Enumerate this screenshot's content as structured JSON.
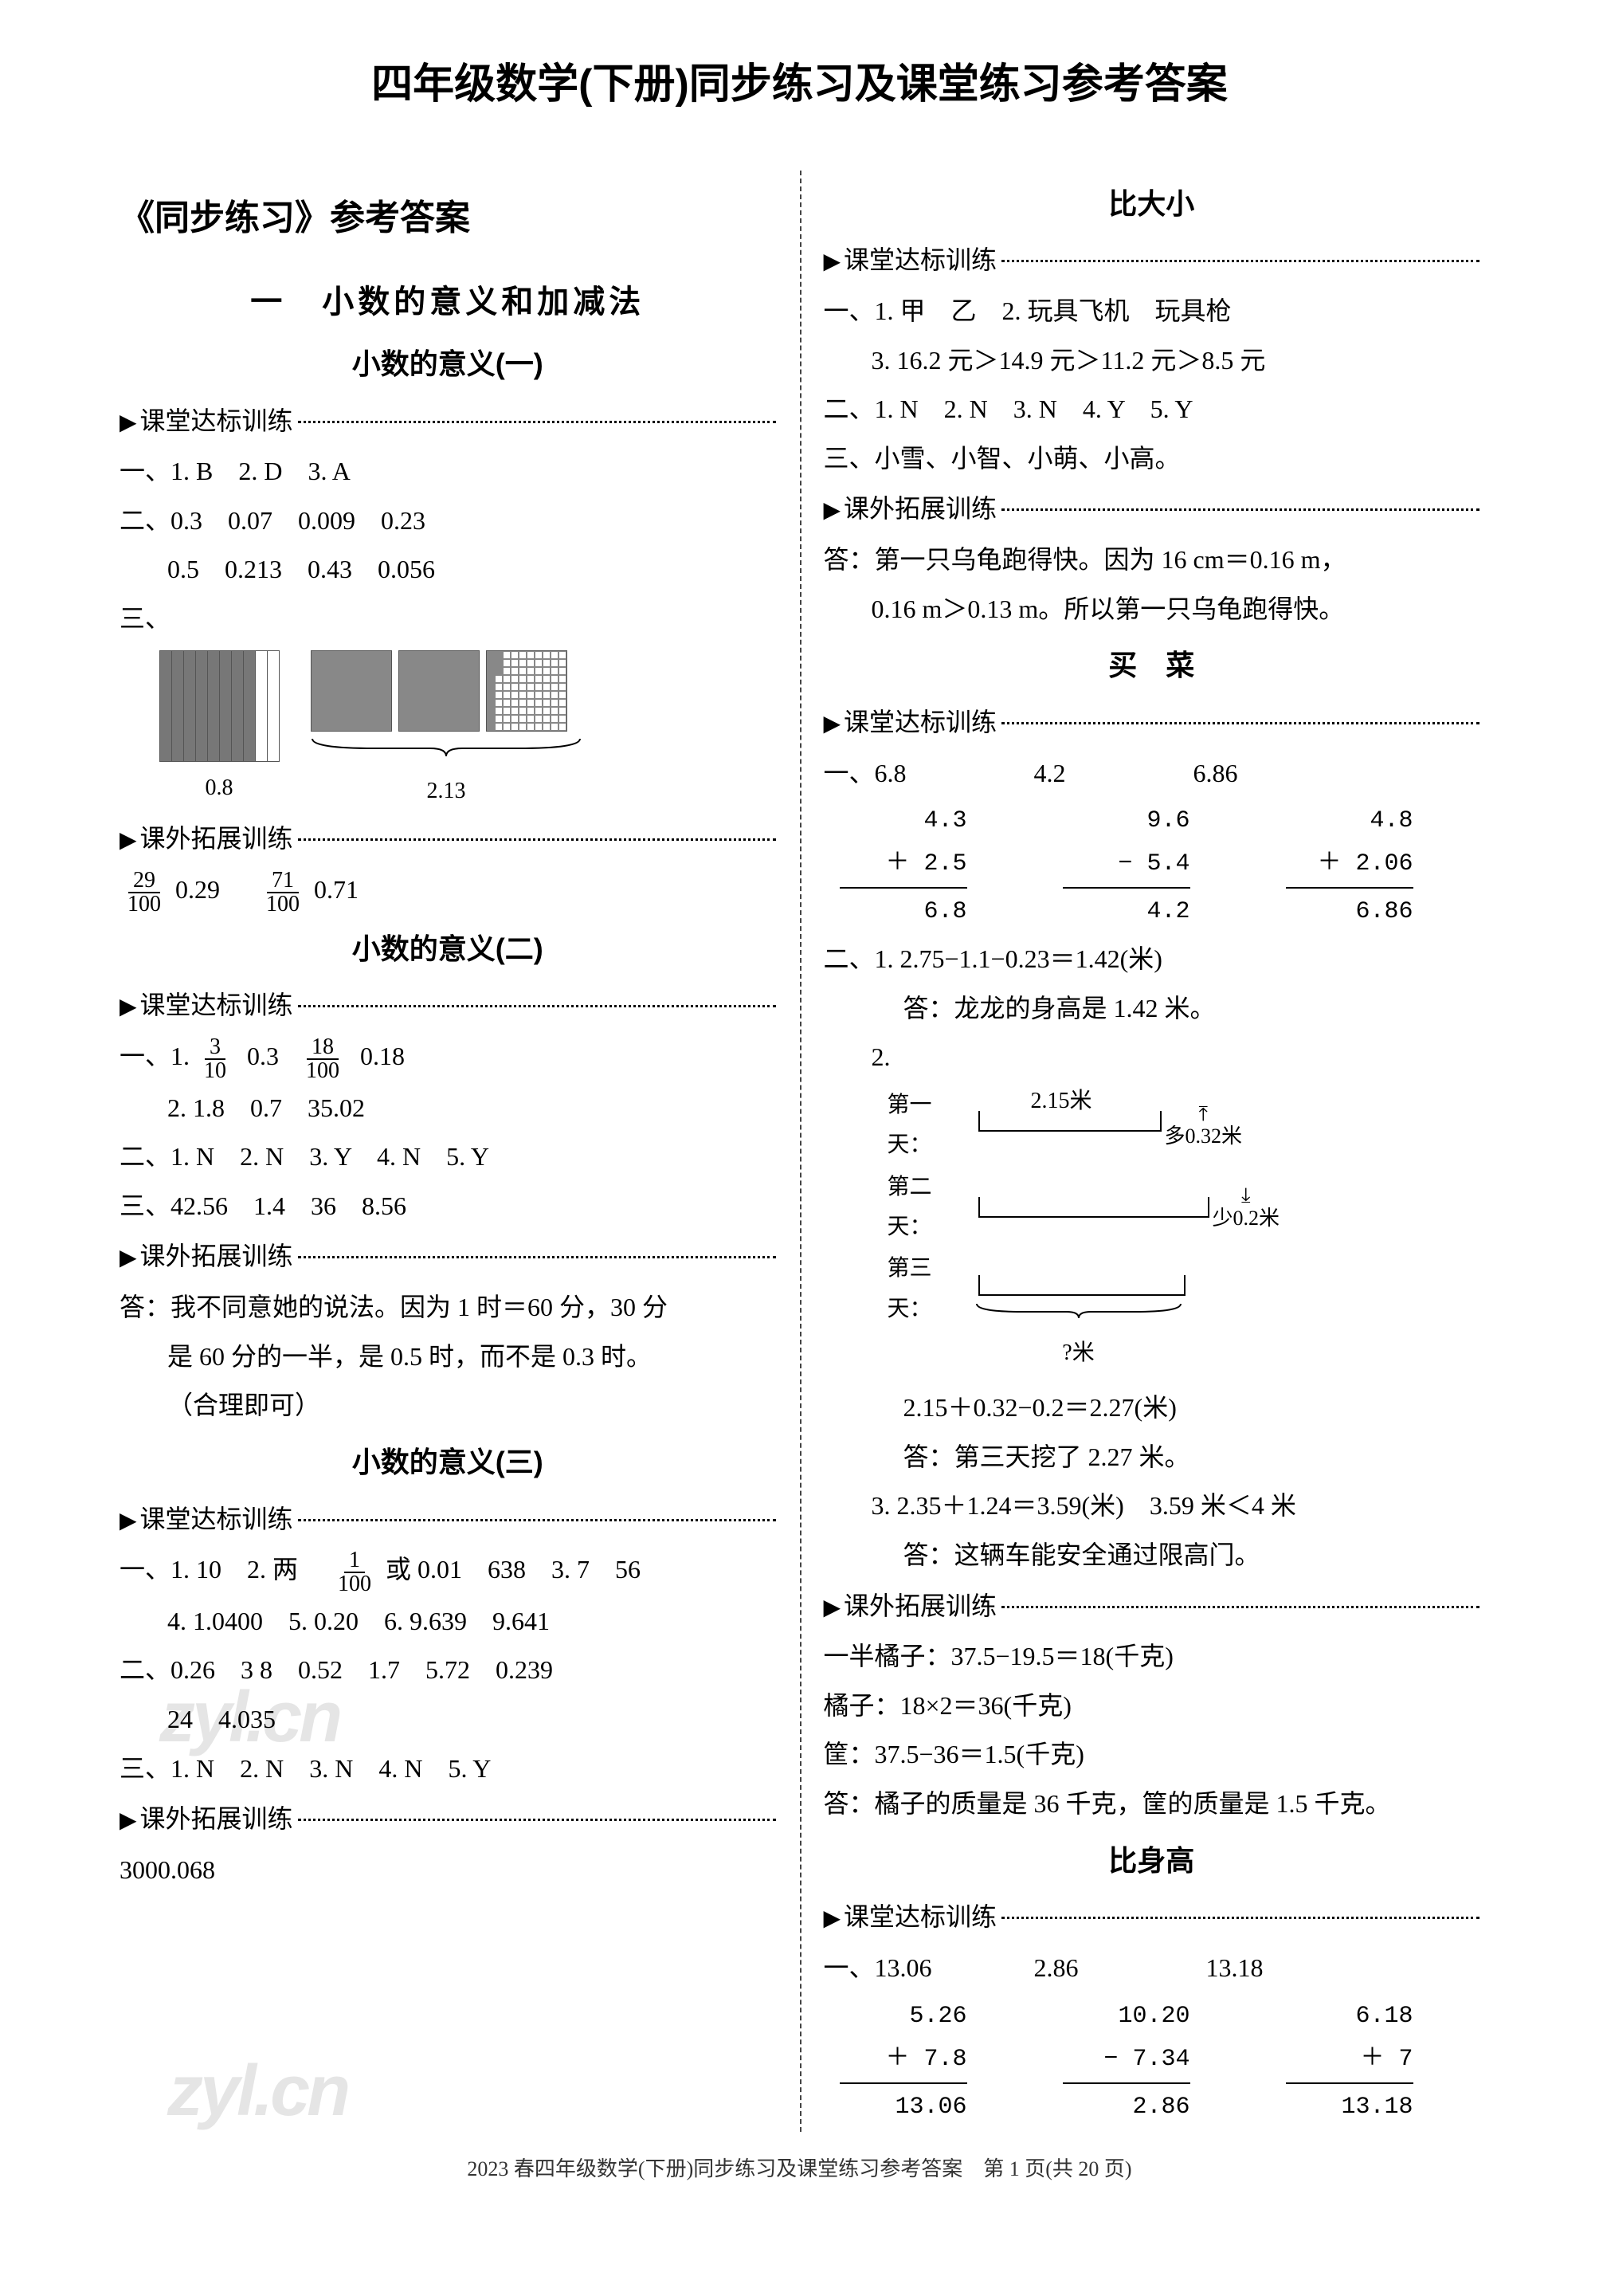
{
  "title": "四年级数学(下册)同步练习及课堂练习参考答案",
  "left": {
    "header": "《同步练习》参考答案",
    "chapter": "一　小数的意义和加减法",
    "s1": {
      "title": "小数的意义(一)",
      "label1": "课堂达标训练",
      "l1": "一、1. B　2. D　3. A",
      "l2": "二、0.3　0.07　0.009　0.23",
      "l3": "0.5　0.213　0.43　0.056",
      "l4": "三、",
      "g1_label": "0.8",
      "g2_label": "2.13",
      "label2": "课外拓展训练",
      "f1n": "29",
      "f1d": "100",
      "f1v": "0.29",
      "f2n": "71",
      "f2d": "100",
      "f2v": "0.71"
    },
    "s2": {
      "title": "小数的意义(二)",
      "label1": "课堂达标训练",
      "l1a": "一、1.",
      "f1n": "3",
      "f1d": "10",
      "l1b": "0.3",
      "f2n": "18",
      "f2d": "100",
      "l1c": "0.18",
      "l2": "2. 1.8　0.7　35.02",
      "l3": "二、1. N　2. N　3. Y　4. N　5. Y",
      "l4": "三、42.56　1.4　36　8.56",
      "label2": "课外拓展训练",
      "l5": "答：我不同意她的说法。因为 1 时＝60 分，30 分",
      "l6": "是 60 分的一半，是 0.5 时，而不是 0.3 时。",
      "l7": "（合理即可）"
    },
    "s3": {
      "title": "小数的意义(三)",
      "label1": "课堂达标训练",
      "l1a": "一、1. 10　2. 两　",
      "f1n": "1",
      "f1d": "100",
      "l1b": "或 0.01　638　3. 7　56",
      "l2": "4. 1.0400　5. 0.20　6. 9.639　9.641",
      "l3": "二、0.26　3 8　0.52　1.7　5.72　0.239",
      "l4": "24　4.035",
      "l5": "三、1. N　2. N　3. N　4. N　5. Y",
      "label2": "课外拓展训练",
      "l6": "3000.068"
    }
  },
  "right": {
    "s1": {
      "title": "比大小",
      "label1": "课堂达标训练",
      "l1": "一、1. 甲　乙　2. 玩具飞机　玩具枪",
      "l2": "3. 16.2 元＞14.9 元＞11.2 元＞8.5 元",
      "l3": "二、1. N　2. N　3. N　4. Y　5. Y",
      "l4": "三、小雪、小智、小萌、小高。",
      "label2": "课外拓展训练",
      "l5": "答：第一只乌龟跑得快。因为 16 cm＝0.16 m，",
      "l6": "0.16 m＞0.13 m。所以第一只乌龟跑得快。"
    },
    "s2": {
      "title": "买　菜",
      "label1": "课堂达标训练",
      "topline": "一、6.8　　　　　4.2　　　　　6.86",
      "c1_a": "4.3",
      "c1_b": "＋ 2.5",
      "c1_r": "6.8",
      "c2_a": "9.6",
      "c2_b": "− 5.4",
      "c2_r": "4.2",
      "c3_a": "4.8",
      "c3_b": "＋ 2.06",
      "c3_r": "6.86",
      "l1": "二、1. 2.75−1.1−0.23＝1.42(米)",
      "l2": "答：龙龙的身高是 1.42 米。",
      "d_head": "2.",
      "d_day1": "第一天：",
      "d_v1": "2.15米",
      "d_more": "多0.32米",
      "d_day2": "第二天：",
      "d_less": "少0.2米",
      "d_day3": "第三天：",
      "d_q": "?米",
      "l3": "2.15＋0.32−0.2＝2.27(米)",
      "l4": "答：第三天挖了 2.27 米。",
      "l5": "3. 2.35＋1.24＝3.59(米)　3.59 米＜4 米",
      "l6": "答：这辆车能安全通过限高门。",
      "label2": "课外拓展训练",
      "l7": "一半橘子：37.5−19.5＝18(千克)",
      "l8": "橘子：18×2＝36(千克)",
      "l9": "筐：37.5−36＝1.5(千克)",
      "l10": "答：橘子的质量是 36 千克，筐的质量是 1.5 千克。"
    },
    "s3": {
      "title": "比身高",
      "label1": "课堂达标训练",
      "topline": "一、13.06　　　　2.86　　　　　13.18",
      "c1_a": "5.26",
      "c1_b": "＋ 7.8",
      "c1_r": "13.06",
      "c2_a": "10.20",
      "c2_b": "− 7.34",
      "c2_r": "2.86",
      "c3_a": "6.18",
      "c3_b": "＋ 7",
      "c3_r": "13.18"
    }
  },
  "footer": "2023 春四年级数学(下册)同步练习及课堂练习参考答案　第 1 页(共 20 页)",
  "watermark": "zyl.cn"
}
